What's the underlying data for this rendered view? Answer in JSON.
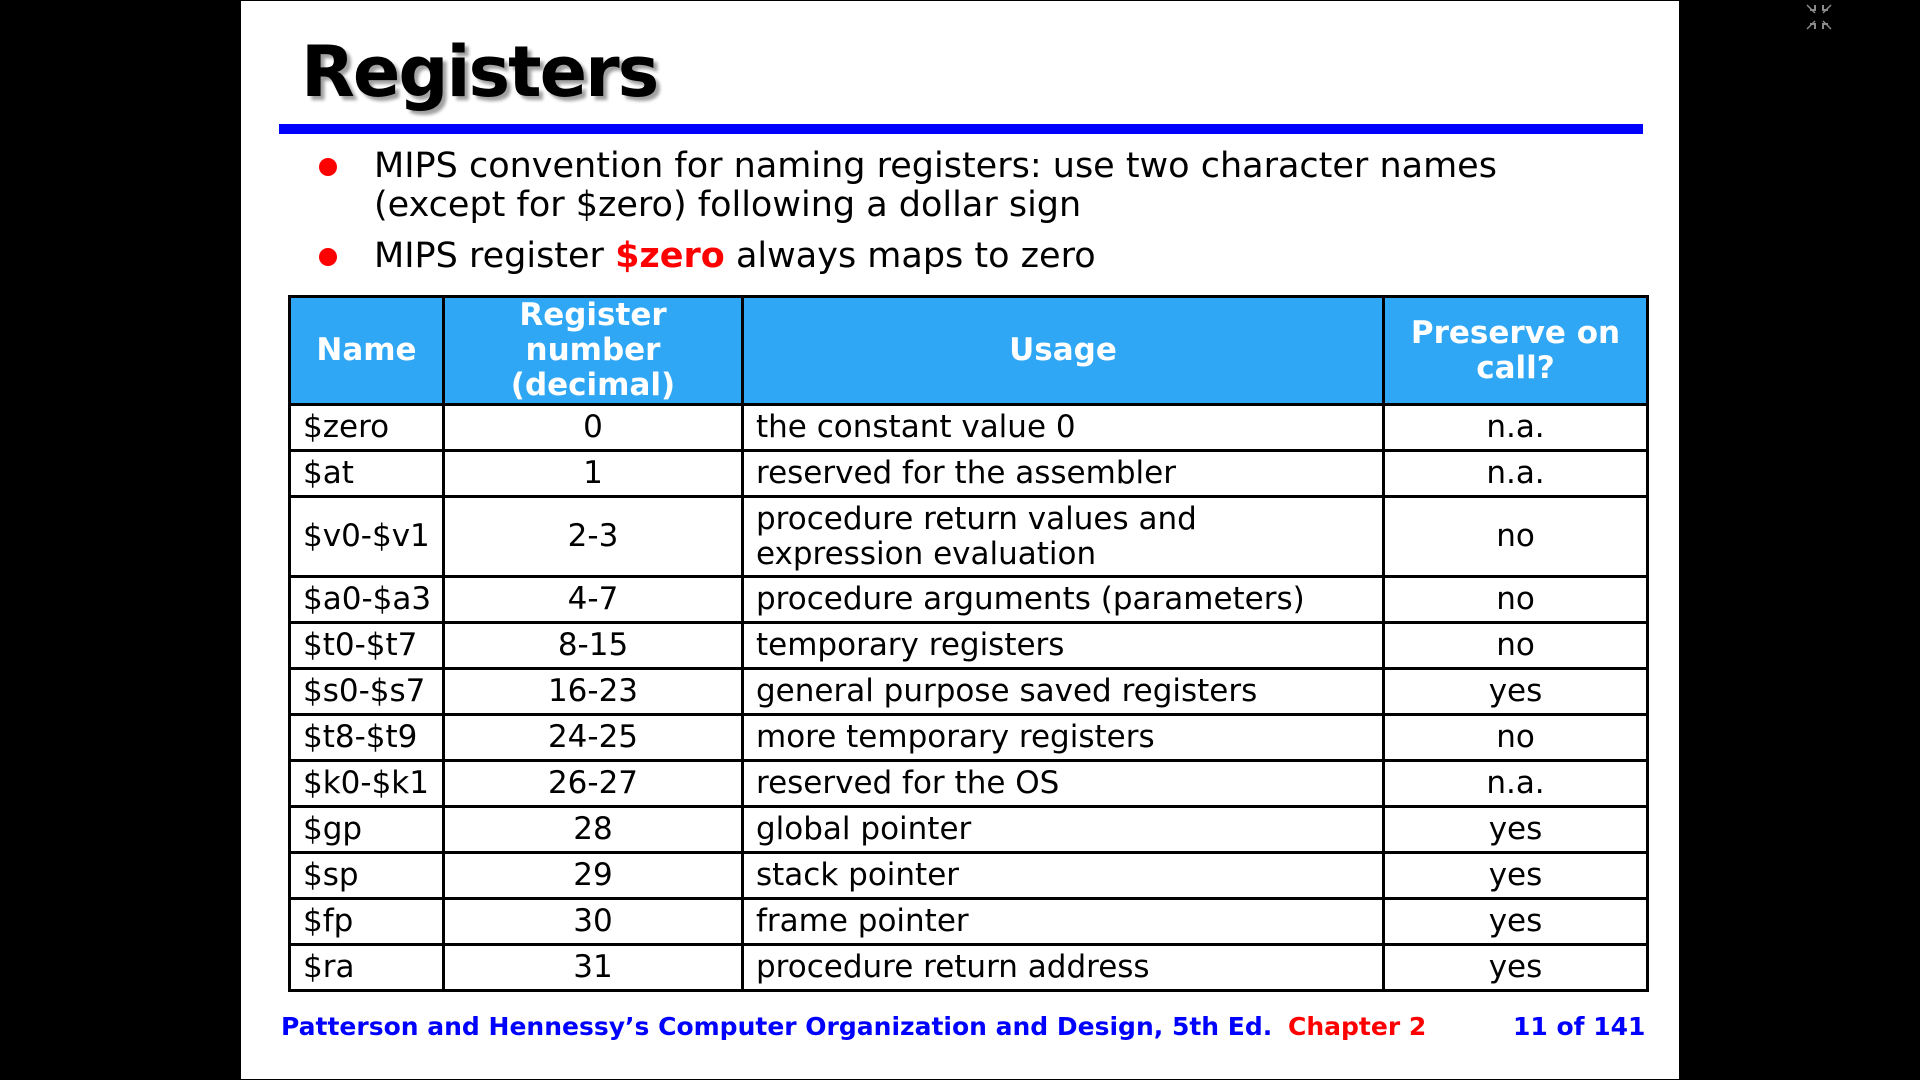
{
  "slide": {
    "title": "Registers",
    "bullets": [
      {
        "text": "MIPS convention for naming registers: use two character names (except for $zero) following a dollar sign"
      },
      {
        "before": "MIPS register ",
        "highlight": "$zero",
        "after": " always maps to zero"
      }
    ],
    "table": {
      "headers": [
        "Name",
        "Register number (decimal)",
        "Usage",
        "Preserve on call?"
      ],
      "rows": [
        {
          "name": "$zero",
          "number": "0",
          "usage": "the constant value 0",
          "preserve": "n.a."
        },
        {
          "name": "$at",
          "number": "1",
          "usage": "reserved for the assembler",
          "preserve": "n.a."
        },
        {
          "name": "$v0-$v1",
          "number": "2-3",
          "usage": "procedure return values and expression evaluation",
          "preserve": "no"
        },
        {
          "name": "$a0-$a3",
          "number": "4-7",
          "usage": "procedure arguments (parameters)",
          "preserve": "no"
        },
        {
          "name": "$t0-$t7",
          "number": "8-15",
          "usage": "temporary registers",
          "preserve": "no"
        },
        {
          "name": "$s0-$s7",
          "number": "16-23",
          "usage": "general purpose saved registers",
          "preserve": "yes"
        },
        {
          "name": "$t8-$t9",
          "number": "24-25",
          "usage": "more temporary registers",
          "preserve": "no"
        },
        {
          "name": "$k0-$k1",
          "number": "26-27",
          "usage": "reserved for the OS",
          "preserve": "n.a."
        },
        {
          "name": "$gp",
          "number": "28",
          "usage": "global pointer",
          "preserve": "yes"
        },
        {
          "name": "$sp",
          "number": "29",
          "usage": "stack pointer",
          "preserve": "yes"
        },
        {
          "name": "$fp",
          "number": "30",
          "usage": "frame pointer",
          "preserve": "yes"
        },
        {
          "name": "$ra",
          "number": "31",
          "usage": "procedure return address",
          "preserve": "yes"
        }
      ]
    },
    "footer": {
      "book": "Patterson and Hennessy’s Computer Organization and Design, 5th Ed.",
      "chapter": "Chapter 2",
      "page": "11 of 141"
    }
  },
  "viewer": {
    "exit_fullscreen_icon": "exit-fullscreen-icon"
  },
  "colors": {
    "accent_blue": "#0000ff",
    "header_blue": "#2fa7f5",
    "bullet_red": "#ff0000",
    "background": "#000000"
  }
}
